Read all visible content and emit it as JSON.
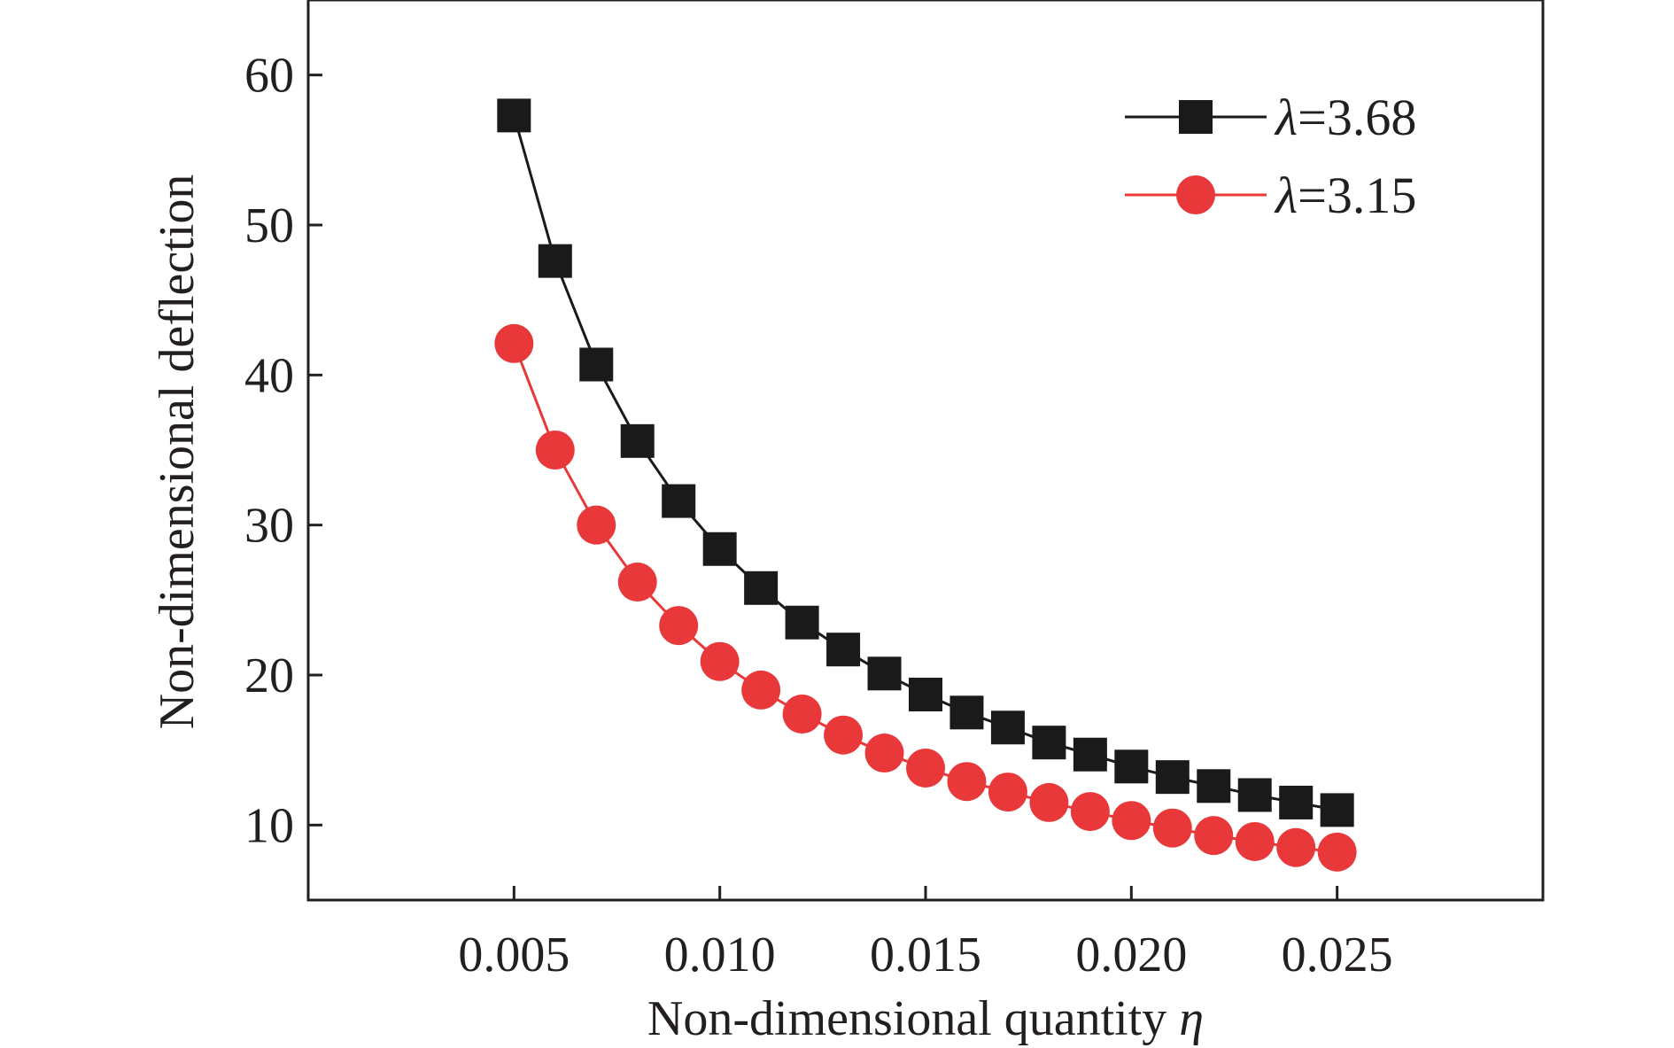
{
  "chart_data": {
    "type": "line",
    "title": "",
    "xlabel_text": "Non-dimensional quantity ",
    "xlabel_symbol": "η",
    "ylabel": "Non-dimensional deflection",
    "xlim": [
      0.0,
      0.03
    ],
    "ylim": [
      5,
      65
    ],
    "x_ticks": [
      "0.005",
      "0.010",
      "0.015",
      "0.020",
      "0.025"
    ],
    "y_ticks": [
      "10",
      "20",
      "30",
      "40",
      "50",
      "60"
    ],
    "grid": false,
    "legend_position": "top-right",
    "x": [
      0.005,
      0.006,
      0.007,
      0.008,
      0.009,
      0.01,
      0.011,
      0.012,
      0.013,
      0.014,
      0.015,
      0.016,
      0.017,
      0.018,
      0.019,
      0.02,
      0.021,
      0.022,
      0.023,
      0.024,
      0.025
    ],
    "series": [
      {
        "name_symbol": "λ",
        "name_value": "=3.68",
        "color": "#1a1a1a",
        "marker": "square",
        "values": [
          57.3,
          47.6,
          40.7,
          35.6,
          31.6,
          28.4,
          25.8,
          23.5,
          21.7,
          20.1,
          18.7,
          17.5,
          16.5,
          15.5,
          14.7,
          13.9,
          13.2,
          12.6,
          12.0,
          11.5,
          11.0
        ]
      },
      {
        "name_symbol": "λ",
        "name_value": "=3.15",
        "color": "#e8383a",
        "marker": "circle",
        "values": [
          42.1,
          35.0,
          30.0,
          26.2,
          23.3,
          20.9,
          19.0,
          17.4,
          16.0,
          14.8,
          13.8,
          12.9,
          12.2,
          11.5,
          10.9,
          10.3,
          9.8,
          9.3,
          8.9,
          8.5,
          8.2
        ]
      }
    ]
  }
}
